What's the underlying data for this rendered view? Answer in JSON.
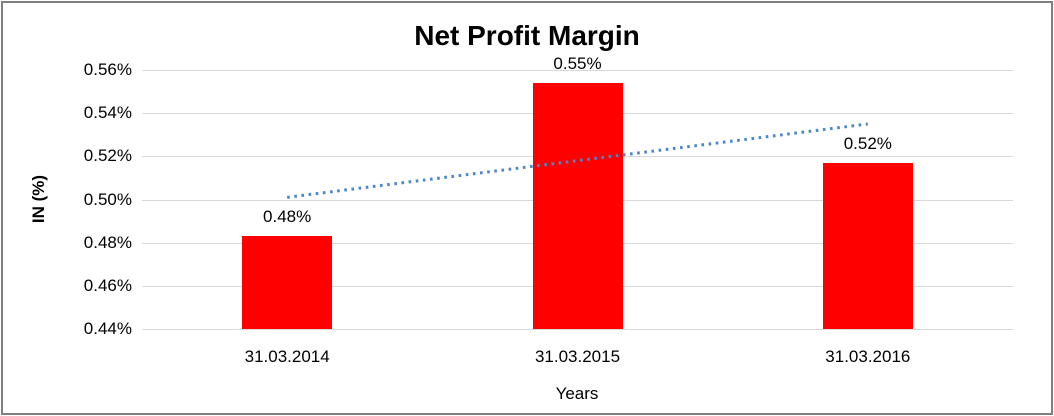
{
  "chart_data": {
    "type": "bar",
    "title": "Net Profit Margin",
    "x_axis_title": "Years",
    "y_axis_title": "IN (%)",
    "categories": [
      "31.03.2014",
      "31.03.2015",
      "31.03.2016"
    ],
    "series": [
      {
        "name": "Net Profit Margin",
        "color": "#FF0000",
        "values": [
          0.483,
          0.554,
          0.517
        ],
        "labels": [
          "0.48%",
          "0.55%",
          "0.52%"
        ]
      }
    ],
    "y_axis": {
      "min": 0.44,
      "max": 0.56,
      "step": 0.02,
      "ticks": [
        {
          "value": 0.56,
          "label": "0.56%"
        },
        {
          "value": 0.54,
          "label": "0.54%"
        },
        {
          "value": 0.52,
          "label": "0.52%"
        },
        {
          "value": 0.5,
          "label": "0.50%"
        },
        {
          "value": 0.48,
          "label": "0.48%"
        },
        {
          "value": 0.46,
          "label": "0.46%"
        },
        {
          "value": 0.44,
          "label": "0.44%"
        }
      ]
    },
    "gridlines": {
      "show": true,
      "color": "#D9D9D9"
    },
    "legend": {
      "show": false
    },
    "trendline": {
      "type": "linear",
      "style": "dotted",
      "color": "#4A86C8",
      "from": 0.501,
      "to": 0.535
    },
    "border_color": "#7f7f7f"
  }
}
